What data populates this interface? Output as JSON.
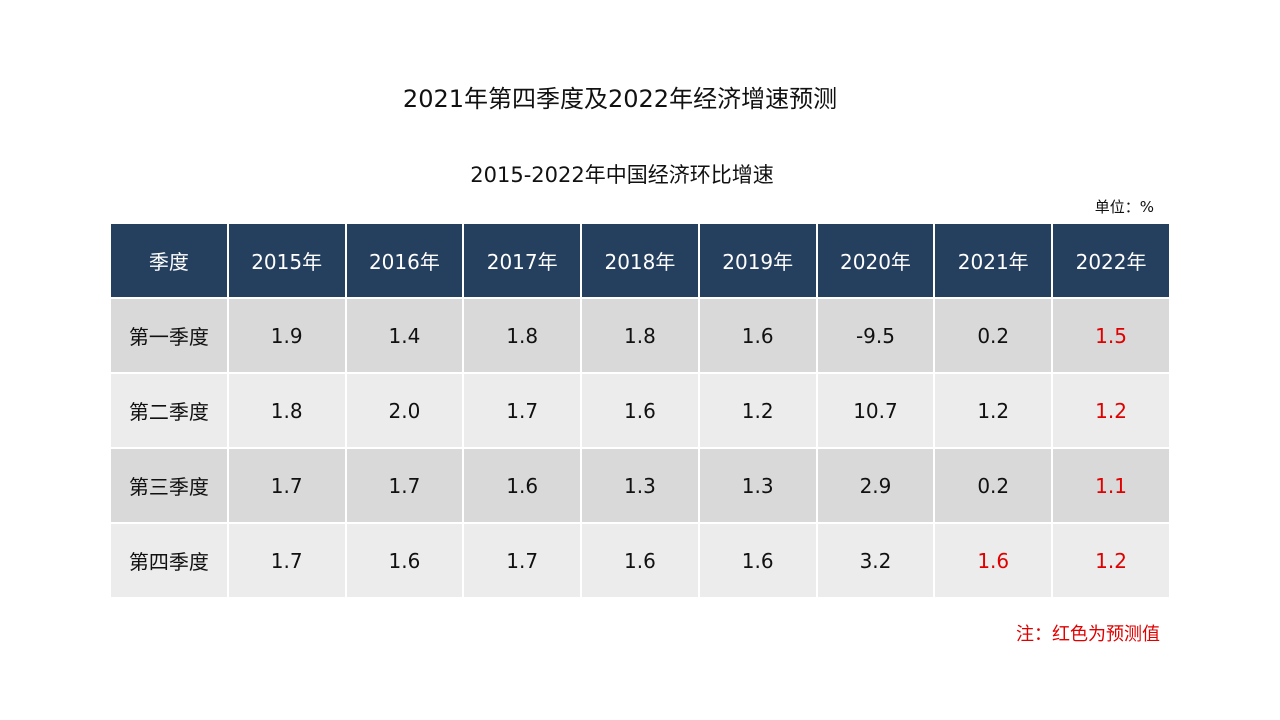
{
  "title": "2021年第四季度及2022年经济增速预测",
  "chart_data": {
    "type": "table",
    "title": "2015-2022年中国经济环比增速",
    "unit": "单位：%",
    "columns": [
      "季度",
      "2015年",
      "2016年",
      "2017年",
      "2018年",
      "2019年",
      "2020年",
      "2021年",
      "2022年"
    ],
    "rows": [
      {
        "label": "第一季度",
        "values": [
          "1.9",
          "1.4",
          "1.8",
          "1.8",
          "1.6",
          "-9.5",
          "0.2",
          "1.5"
        ],
        "forecast": [
          false,
          false,
          false,
          false,
          false,
          false,
          false,
          true
        ]
      },
      {
        "label": "第二季度",
        "values": [
          "1.8",
          "2.0",
          "1.7",
          "1.6",
          "1.2",
          "10.7",
          "1.2",
          "1.2"
        ],
        "forecast": [
          false,
          false,
          false,
          false,
          false,
          false,
          false,
          true
        ]
      },
      {
        "label": "第三季度",
        "values": [
          "1.7",
          "1.7",
          "1.6",
          "1.3",
          "1.3",
          "2.9",
          "0.2",
          "1.1"
        ],
        "forecast": [
          false,
          false,
          false,
          false,
          false,
          false,
          false,
          true
        ]
      },
      {
        "label": "第四季度",
        "values": [
          "1.7",
          "1.6",
          "1.7",
          "1.6",
          "1.6",
          "3.2",
          "1.6",
          "1.2"
        ],
        "forecast": [
          false,
          false,
          false,
          false,
          false,
          false,
          true,
          true
        ]
      }
    ],
    "note": "注：红色为预测值"
  },
  "colors": {
    "header_bg": "#253f5f",
    "row_odd_bg": "#d9d9d9",
    "row_even_bg": "#ececec",
    "forecast_text": "#e00000"
  }
}
